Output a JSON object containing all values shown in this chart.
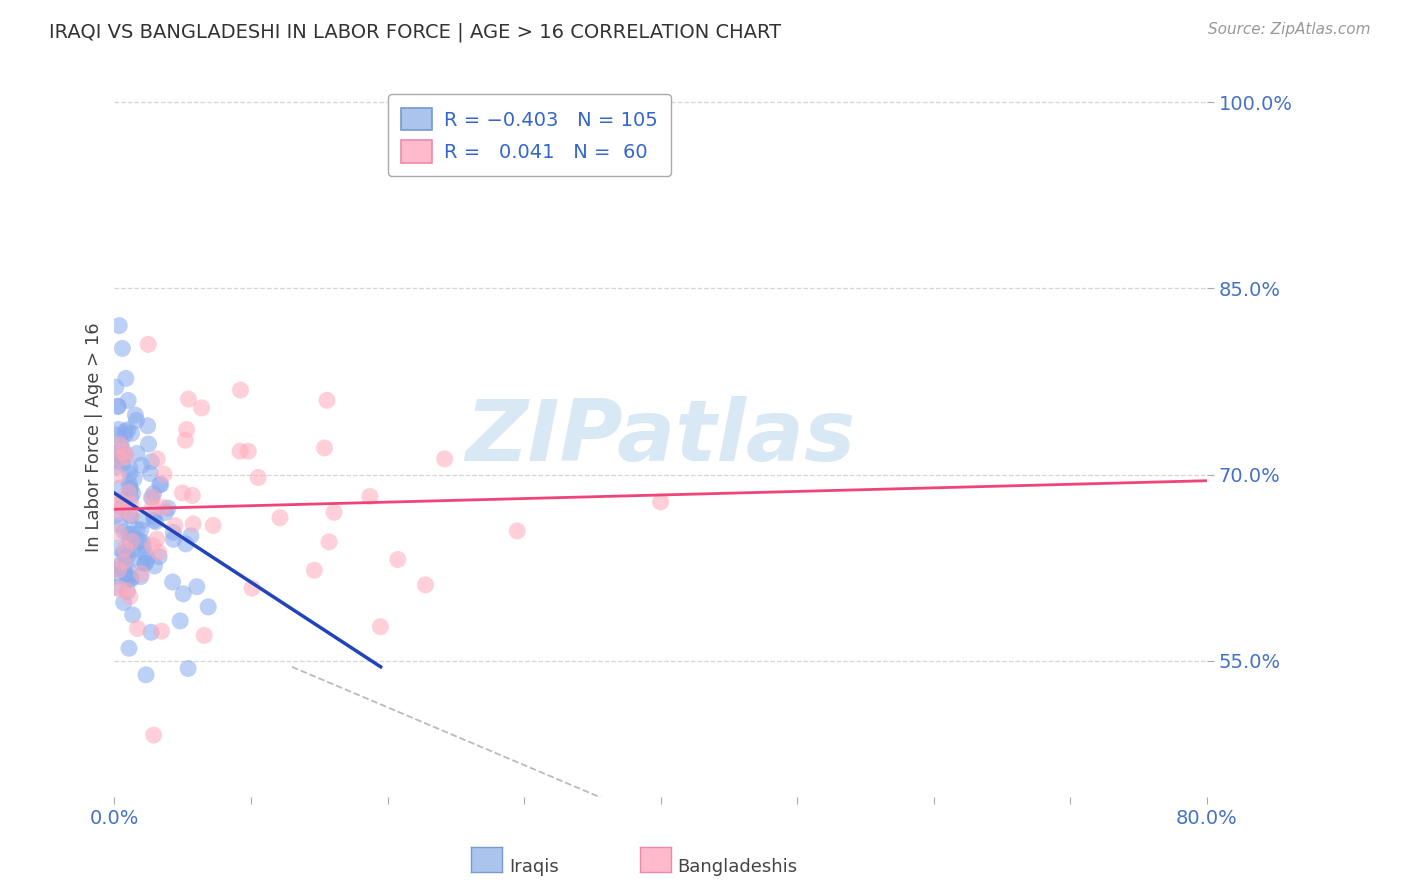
{
  "title": "IRAQI VS BANGLADESHI IN LABOR FORCE | AGE > 16 CORRELATION CHART",
  "source": "Source: ZipAtlas.com",
  "ylabel": "In Labor Force | Age > 16",
  "xlim": [
    0.0,
    0.8
  ],
  "ylim": [
    0.44,
    1.02
  ],
  "yticks": [
    0.55,
    0.7,
    0.85,
    1.0
  ],
  "yticklabels": [
    "55.0%",
    "70.0%",
    "85.0%",
    "100.0%"
  ],
  "grid_color": "#cccccc",
  "bg_color": "#ffffff",
  "iraqis_color": "#88aaee",
  "bangladeshis_color": "#ffaabb",
  "iraqis_line_color": "#2244bb",
  "bangladeshis_line_color": "#ee4477",
  "dashed_line_color": "#bbbbbb",
  "watermark_color": "#d8e8f5",
  "iraqis_R": -0.403,
  "iraqis_N": 105,
  "bangladeshis_R": 0.041,
  "bangladeshis_N": 60,
  "iraqi_line_x": [
    0.0,
    0.195
  ],
  "iraqi_line_y": [
    0.685,
    0.545
  ],
  "bangladeshi_line_x": [
    0.0,
    0.8
  ],
  "bangladeshi_line_y": [
    0.672,
    0.695
  ],
  "dashed_line_x": [
    0.13,
    0.42
  ],
  "dashed_line_y": [
    0.545,
    0.41
  ]
}
